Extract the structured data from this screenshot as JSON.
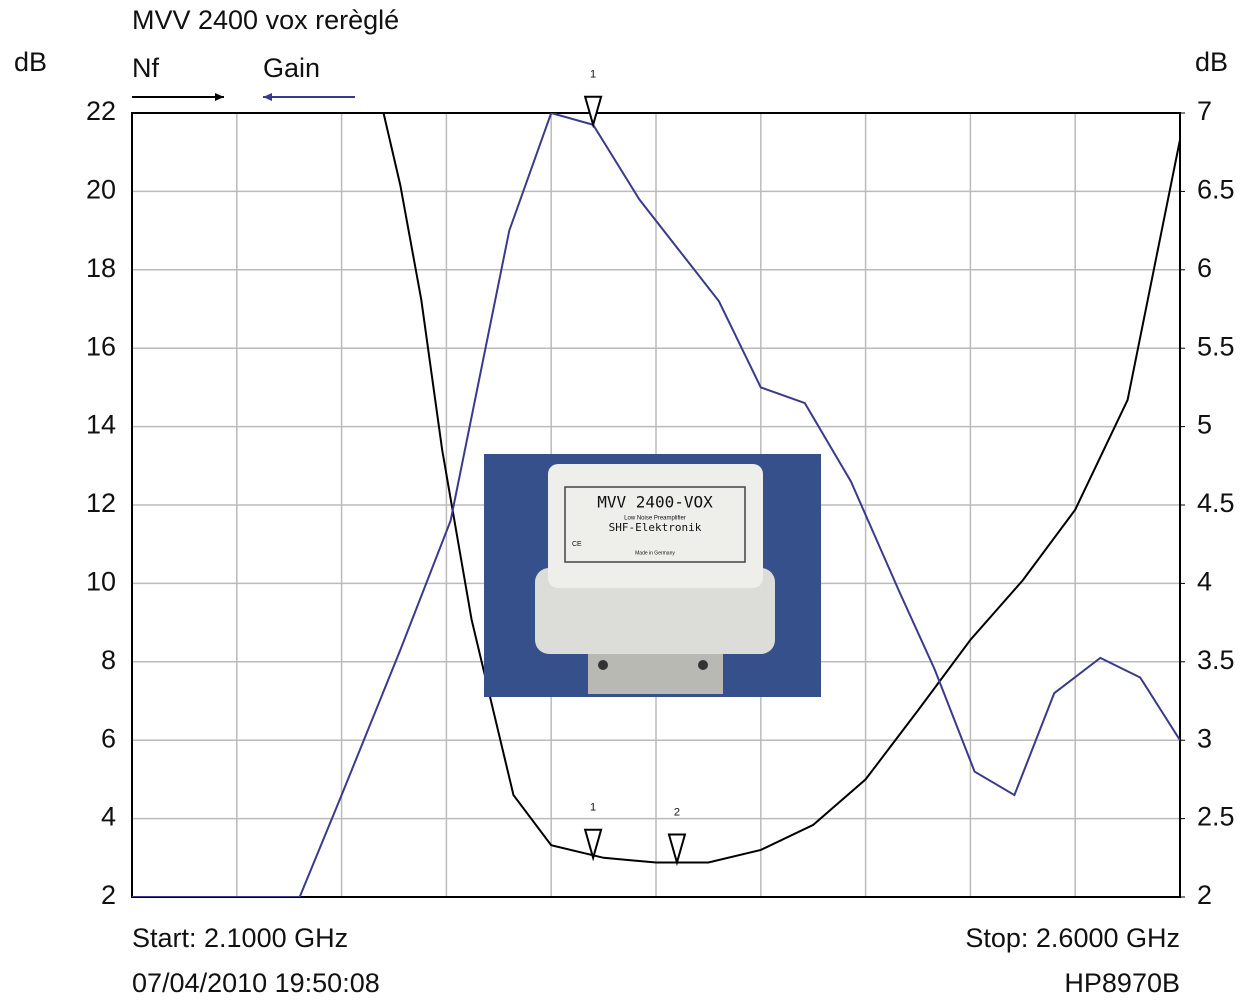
{
  "chart_data": {
    "type": "line",
    "title": "MVV 2400 vox rerèglé",
    "y_label": "dB",
    "y2_label": "dB",
    "start_label": "Start: 2.1000 GHz",
    "stop_label": "Stop: 2.6000 GHz",
    "timestamp": "07/04/2010 19:50:08",
    "instrument": "HP8970B",
    "xlim": [
      2.1,
      2.6
    ],
    "xticks": [
      2.1,
      2.15,
      2.2,
      2.25,
      2.3,
      2.35,
      2.4,
      2.45,
      2.5,
      2.55,
      2.6
    ],
    "ylim": [
      2,
      22
    ],
    "yticks": [
      2,
      4,
      6,
      8,
      10,
      12,
      14,
      16,
      18,
      20,
      22
    ],
    "y2lim": [
      2,
      7
    ],
    "y2ticks": [
      2,
      2.5,
      3,
      3.5,
      4,
      4.5,
      5,
      5.5,
      6,
      6.5,
      7
    ],
    "grid": true,
    "series": [
      {
        "name": "Nf",
        "color": "#000000",
        "axis": "y2",
        "legend_arrow": "right",
        "x": [
          2.22,
          2.228,
          2.238,
          2.248,
          2.262,
          2.282,
          2.3,
          2.325,
          2.35,
          2.375,
          2.4,
          2.425,
          2.45,
          2.475,
          2.5,
          2.525,
          2.55,
          2.575,
          2.6
        ],
        "values": [
          7.0,
          6.54,
          5.81,
          4.85,
          3.77,
          2.65,
          2.33,
          2.25,
          2.22,
          2.22,
          2.3,
          2.46,
          2.75,
          3.19,
          3.64,
          4.02,
          4.47,
          5.17,
          6.83
        ]
      },
      {
        "name": "Gain",
        "color": "#3a3a8c",
        "axis": "y",
        "legend_arrow": "left",
        "x": [
          2.1,
          2.18,
          2.2,
          2.228,
          2.252,
          2.28,
          2.3,
          2.32,
          2.342,
          2.361,
          2.38,
          2.4,
          2.421,
          2.443,
          2.466,
          2.483,
          2.502,
          2.521,
          2.54,
          2.562,
          2.581,
          2.6
        ],
        "values": [
          2,
          2,
          4.6,
          8.3,
          11.6,
          19.0,
          22,
          21.7,
          19.8,
          18.5,
          17.2,
          15.0,
          14.6,
          12.6,
          9.8,
          7.8,
          5.2,
          4.6,
          7.2,
          8.1,
          7.6,
          6.0
        ]
      }
    ],
    "markers": [
      {
        "label": "1",
        "x": 2.32,
        "y": 21.7,
        "axis": "y"
      },
      {
        "label": "1",
        "x": 2.32,
        "y": 2.25,
        "axis": "y2"
      },
      {
        "label": "2",
        "x": 2.36,
        "y": 2.22,
        "axis": "y2"
      }
    ],
    "inset": {
      "model": "MVV 2400-VOX",
      "subtitle": "Low Noise Preamplifier",
      "maker": "SHF-Elektronik",
      "mark": "CE",
      "origin": "Made in Germany"
    }
  }
}
